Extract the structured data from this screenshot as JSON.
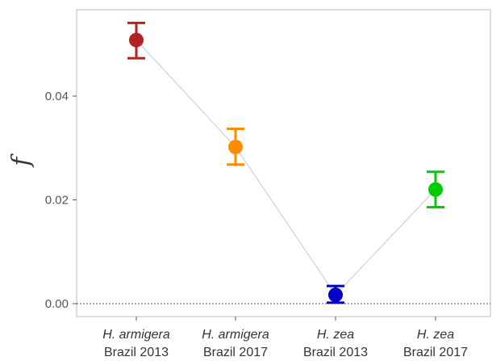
{
  "chart_data": {
    "type": "scatter",
    "title": "",
    "xlabel": "",
    "ylabel": "f",
    "ylim": [
      -0.002,
      0.057
    ],
    "yticks": [
      0.0,
      0.02,
      0.04
    ],
    "ytick_labels": [
      "0.00",
      "0.02",
      "0.04"
    ],
    "grid": false,
    "reference_line": 0.0,
    "connector_lines": true,
    "categories": [
      {
        "species": "H. armigera",
        "label": "Brazil 2013",
        "value": 0.0508,
        "lower": 0.0473,
        "upper": 0.0541,
        "color": "#b22222"
      },
      {
        "species": "H. armigera",
        "label": "Brazil 2017",
        "value": 0.0302,
        "lower": 0.0268,
        "upper": 0.0337,
        "color": "#ff8c00"
      },
      {
        "species": "H. zea",
        "label": "Brazil 2013",
        "value": 0.0017,
        "lower": 0.0002,
        "upper": 0.0034,
        "color": "#0000cd"
      },
      {
        "species": "H. zea",
        "label": "Brazil 2017",
        "value": 0.022,
        "lower": 0.0186,
        "upper": 0.0254,
        "color": "#00cc00"
      }
    ]
  }
}
